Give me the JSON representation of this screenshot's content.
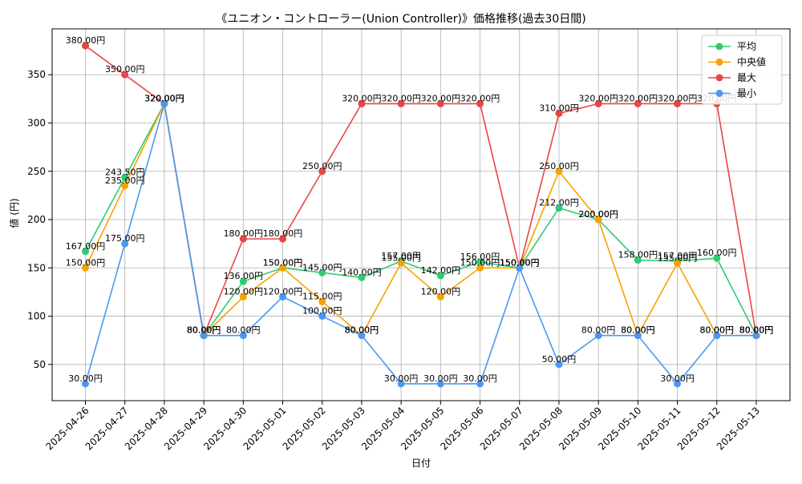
{
  "chart_data": {
    "type": "line",
    "title": "《ユニオン・コントローラー(Union Controller)》価格推移(過去30日間)",
    "xlabel": "日付",
    "ylabel": "値 (円)",
    "value_suffix": "円",
    "categories": [
      "2025-04-26",
      "2025-04-27",
      "2025-04-28",
      "2025-04-29",
      "2025-04-30",
      "2025-05-01",
      "2025-05-02",
      "2025-05-03",
      "2025-05-04",
      "2025-05-05",
      "2025-05-06",
      "2025-05-07",
      "2025-05-08",
      "2025-05-09",
      "2025-05-10",
      "2025-05-11",
      "2025-05-12",
      "2025-05-13"
    ],
    "yticks": [
      50,
      100,
      150,
      200,
      250,
      300,
      350
    ],
    "ylim": [
      12.5,
      397.5
    ],
    "grid": true,
    "legend_position": "top-right",
    "series": [
      {
        "name": "平均",
        "color": "#2ecc71",
        "values": [
          167,
          243.5,
          320,
          80,
          136,
          150,
          145,
          140,
          157,
          142,
          156,
          150,
          212,
          200,
          158,
          157,
          160,
          80
        ]
      },
      {
        "name": "中央値",
        "color": "#f5a300",
        "values": [
          150,
          235,
          320,
          80,
          120,
          150,
          115,
          80,
          155,
          120,
          150,
          150,
          250,
          200,
          80,
          155,
          80,
          80
        ]
      },
      {
        "name": "最大",
        "color": "#e84545",
        "values": [
          380,
          350,
          320,
          80,
          180,
          180,
          250,
          320,
          320,
          320,
          320,
          150,
          310,
          320,
          320,
          320,
          320,
          80
        ]
      },
      {
        "name": "最小",
        "color": "#4a98f0",
        "values": [
          30,
          175,
          320,
          80,
          80,
          120,
          100,
          80,
          30,
          30,
          30,
          150,
          50,
          80,
          80,
          30,
          80,
          80
        ]
      }
    ]
  }
}
